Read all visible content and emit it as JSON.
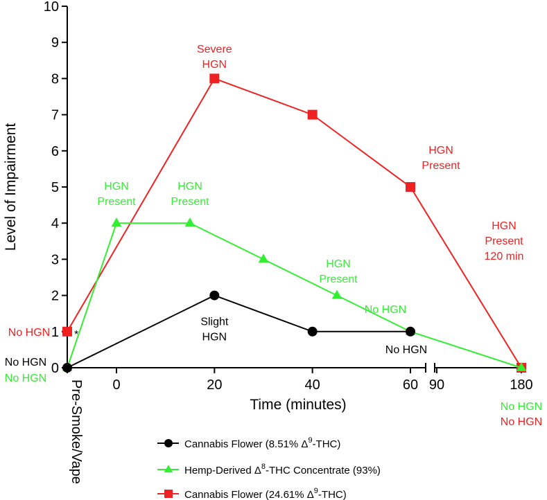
{
  "chart_data": {
    "type": "line",
    "xlabel": "Time (minutes)",
    "ylabel": "Level of Impairment",
    "ylim": [
      0,
      10
    ],
    "yticks": [
      "0",
      "1",
      "2",
      "3",
      "4",
      "5",
      "6",
      "7",
      "8",
      "9",
      "10"
    ],
    "xticks": [
      "0",
      "20",
      "40",
      "60",
      "90",
      "180"
    ],
    "x_category_label": "Pre-Smoke/Vape",
    "axis_break": "between 60 and 90 minutes",
    "grid": false,
    "legend_position": "bottom",
    "series": [
      {
        "name": "Cannabis Flower (8.51% Δ9-THC)",
        "legend_parts": [
          "Cannabis Flower (8.51% Δ",
          "9",
          "-THC)"
        ],
        "color": "#000000",
        "marker": "circle",
        "points": [
          {
            "x": "Pre-Smoke/Vape",
            "y": 0
          },
          {
            "x": 20,
            "y": 2
          },
          {
            "x": 40,
            "y": 1
          },
          {
            "x": 60,
            "y": 1
          }
        ]
      },
      {
        "name": "Hemp-Derived Δ8-THC Concentrate (93%)",
        "legend_parts": [
          "Hemp-Derived Δ",
          "8",
          "-THC Concentrate (93%)"
        ],
        "color": "#33ee33",
        "marker": "triangle",
        "points": [
          {
            "x": "Pre-Smoke/Vape",
            "y": 0
          },
          {
            "x": 0,
            "y": 4
          },
          {
            "x": 15,
            "y": 4
          },
          {
            "x": 30,
            "y": 3
          },
          {
            "x": 45,
            "y": 2
          },
          {
            "x": 60,
            "y": 1
          },
          {
            "x": 180,
            "y": 0
          }
        ]
      },
      {
        "name": "Cannabis Flower (24.61% Δ9-THC)",
        "legend_parts": [
          "Cannabis Flower (24.61% Δ",
          "9",
          "-THC)"
        ],
        "color": "#ee2222",
        "marker": "square",
        "points": [
          {
            "x": "Pre-Smoke/Vape",
            "y": 1
          },
          {
            "x": 20,
            "y": 8
          },
          {
            "x": 40,
            "y": 7
          },
          {
            "x": 60,
            "y": 5
          },
          {
            "x": 180,
            "y": 0
          }
        ]
      }
    ],
    "annotations": [
      {
        "lines": [
          "Severe",
          "HGN"
        ],
        "color": "#ee2222",
        "x": 20,
        "y": 8,
        "anchor": "above"
      },
      {
        "lines": [
          "HGN",
          "Present"
        ],
        "color": "#ee2222",
        "x": 60,
        "y": 5,
        "anchor": "above-right"
      },
      {
        "lines": [
          "HGN",
          "Present",
          "120 min"
        ],
        "color": "#ee2222",
        "x": 120,
        "y": 3.5,
        "anchor": "right"
      },
      {
        "lines": [
          "HGN",
          "Present"
        ],
        "color": "#33ee33",
        "x": 0,
        "y": 4,
        "anchor": "above"
      },
      {
        "lines": [
          "HGN",
          "Present"
        ],
        "color": "#33ee33",
        "x": 15,
        "y": 4,
        "anchor": "above"
      },
      {
        "lines": [
          "HGN",
          "Present"
        ],
        "color": "#33ee33",
        "x": 45,
        "y": 2,
        "anchor": "above"
      },
      {
        "lines": [
          "No HGN"
        ],
        "color": "#33ee33",
        "x": 60,
        "y": 1,
        "anchor": "above"
      },
      {
        "lines": [
          "Slight",
          "HGN"
        ],
        "color": "#000000",
        "x": 20,
        "y": 2,
        "anchor": "below"
      },
      {
        "lines": [
          "No HGN"
        ],
        "color": "#000000",
        "x": 60,
        "y": 1,
        "anchor": "below"
      },
      {
        "lines": [
          "No HGN"
        ],
        "color": "#ee2222",
        "x": "Pre-Smoke/Vape",
        "y": 1,
        "anchor": "left"
      },
      {
        "lines": [
          "No HGN"
        ],
        "color": "#000000",
        "x": "Pre-Smoke/Vape",
        "y": 0,
        "anchor": "left-upper"
      },
      {
        "lines": [
          "No HGN"
        ],
        "color": "#33ee33",
        "x": "Pre-Smoke/Vape",
        "y": 0,
        "anchor": "left-lower"
      },
      {
        "lines": [
          "No HGN"
        ],
        "color": "#33ee33",
        "x": 180,
        "y": 0,
        "anchor": "below-upper"
      },
      {
        "lines": [
          "No HGN"
        ],
        "color": "#ee2222",
        "x": 180,
        "y": 0,
        "anchor": "below-lower"
      },
      {
        "lines": [
          "*"
        ],
        "color": "#000000",
        "x": "Pre-Smoke/Vape",
        "y": 1,
        "anchor": "right"
      }
    ]
  }
}
